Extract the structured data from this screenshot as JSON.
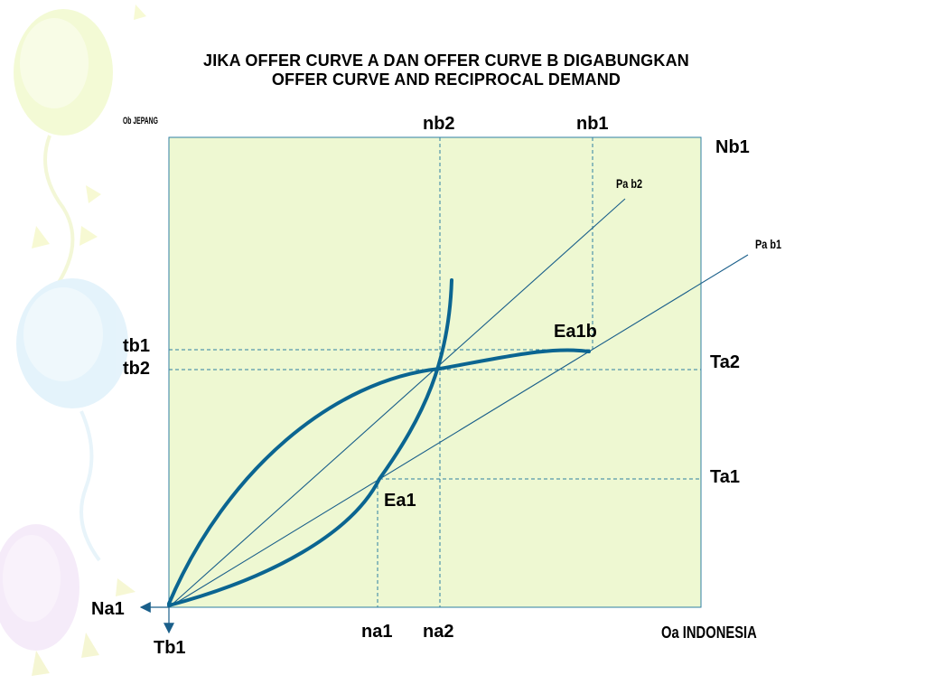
{
  "title_line1": "JIKA OFFER CURVE  A DAN OFFER CURVE  B DIGABUNGKAN",
  "title_line2": "OFFER CURVE AND RECIPROCAL DEMAND",
  "labels": {
    "ob_origin": "Ob JEPANG",
    "nb2": "nb2",
    "nb1": "nb1",
    "Nb1": "Nb1",
    "pab2": "Pa b2",
    "pab1": "Pa b1",
    "ea1b": "Ea1b",
    "tb1": "tb1",
    "tb2": "tb2",
    "Ta2": "Ta2",
    "Ta1": "Ta1",
    "ea1": "Ea1",
    "Na1": "Na1",
    "Tb1": "Tb1",
    "na1": "na1",
    "na2": "na2",
    "oa_origin": "Oa INDONESIA"
  },
  "colors": {
    "panel": "#eef8d2",
    "curve": "#0b6591",
    "line": "#1a5f8a",
    "dashed": "#2f7fa3"
  }
}
